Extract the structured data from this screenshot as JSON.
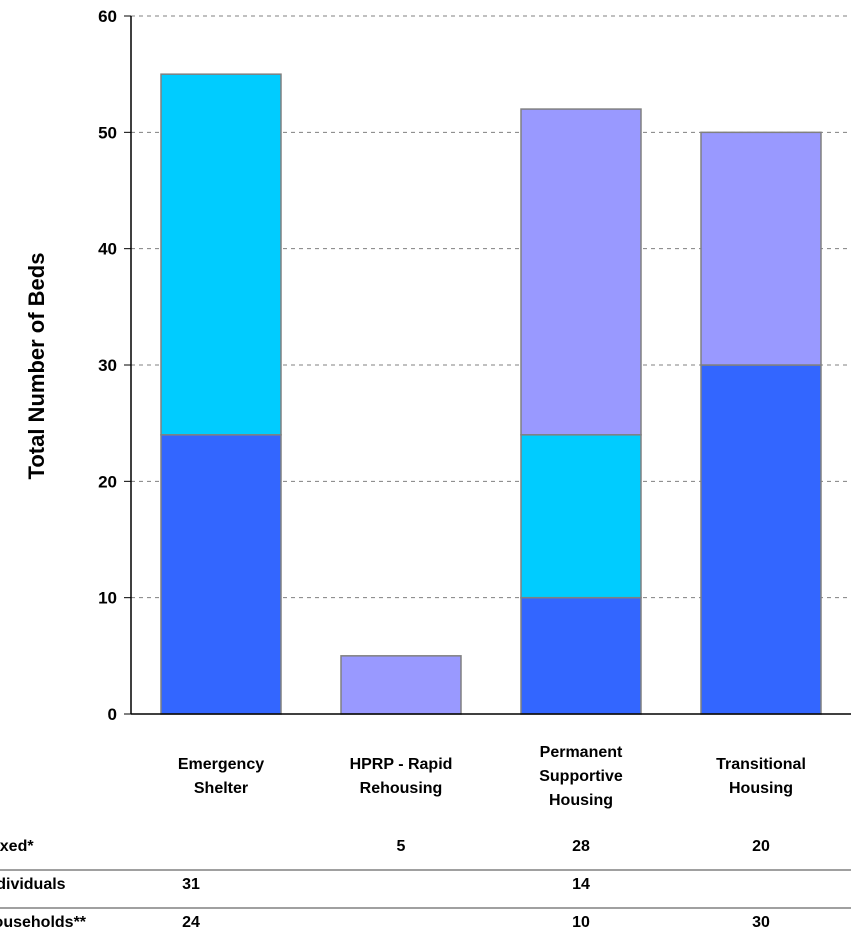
{
  "chart_data": {
    "type": "bar",
    "stacked": true,
    "title": "",
    "xlabel": "",
    "ylabel": "Total Number of Beds",
    "ylim": [
      0,
      60
    ],
    "yticks": [
      0,
      10,
      20,
      30,
      40,
      50,
      60
    ],
    "grid": "horizontal dashed",
    "categories": [
      [
        "Emergency",
        "Shelter"
      ],
      [
        "HPRP - Rapid",
        "Rehousing"
      ],
      [
        "Permanent",
        "Supportive",
        "Housing"
      ],
      [
        "Transitional",
        "Housing"
      ]
    ],
    "series": [
      {
        "name": "Households**",
        "color": "#3366ff",
        "values": [
          24,
          null,
          10,
          30
        ]
      },
      {
        "name": "Individuals",
        "color": "#00ccff",
        "values": [
          31,
          null,
          14,
          null
        ]
      },
      {
        "name": "Mixed*",
        "color": "#9999ff",
        "values": [
          null,
          5,
          28,
          20
        ]
      }
    ],
    "table": {
      "rows": [
        {
          "label": "Mixed*",
          "values": [
            "",
            "5",
            "28",
            "20"
          ]
        },
        {
          "label": "Individuals",
          "values": [
            "31",
            "",
            "14",
            ""
          ]
        },
        {
          "label": "Households**",
          "values": [
            "24",
            "",
            "10",
            "30"
          ]
        }
      ]
    }
  }
}
